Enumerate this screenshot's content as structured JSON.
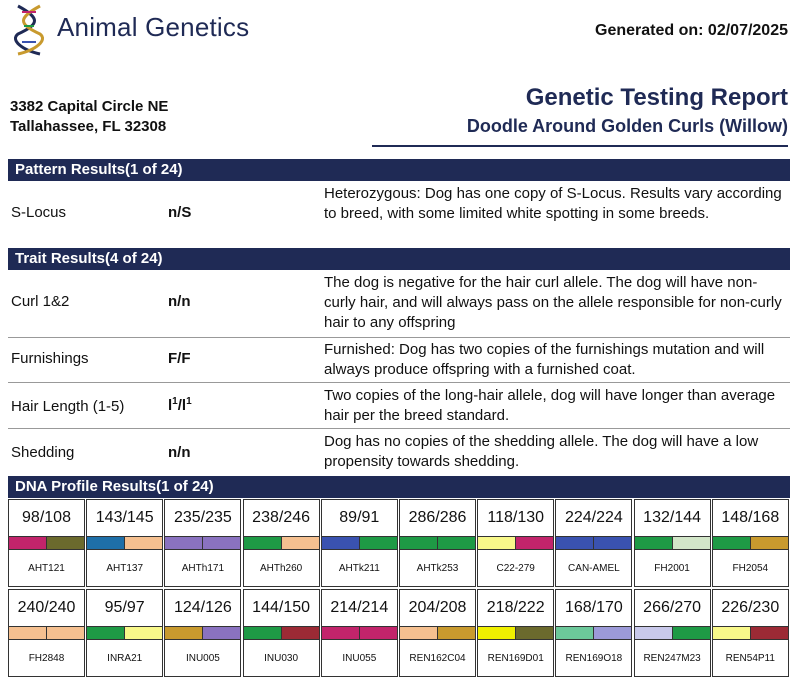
{
  "header": {
    "brand": "Animal Genetics",
    "generated_label": "Generated on:",
    "generated_date": "02/07/2025",
    "address_line1": "3382 Capital Circle NE",
    "address_line2": "Tallahassee, FL 32308",
    "report_title": "Genetic Testing Report",
    "dog_name": "Doodle Around Golden Curls (Willow)"
  },
  "pattern": {
    "title": "Pattern Results(1 of 24)",
    "rows": [
      {
        "name": "S-Locus",
        "genotype": "n/S",
        "description": "Heterozygous: Dog has one copy of S-Locus. Results vary according to breed, with some limited white spotting in some breeds."
      }
    ]
  },
  "trait": {
    "title": "Trait Results(4 of 24)",
    "rows": [
      {
        "name": "Curl 1&2",
        "genotype": "n/n",
        "description": "The dog is negative for the hair curl allele. The dog will have non-curly hair, and will always pass on the allele responsible for non-curly hair to any offspring"
      },
      {
        "name": "Furnishings",
        "genotype": "F/F",
        "description": "Furnished: Dog has two copies of the furnishings mutation and will always produce offspring with a furnished coat."
      },
      {
        "name": "Hair Length (1-5)",
        "genotype_base1": "l",
        "genotype_sup1": "1",
        "genotype_sep": "/",
        "genotype_base2": "l",
        "genotype_sup2": "1",
        "description": "Two copies of the long-hair allele, dog will have longer than average hair per the breed standard."
      },
      {
        "name": "Shedding",
        "genotype": "n/n",
        "description": "Dog has no copies of the shedding allele. The dog will have a low propensity towards shedding."
      }
    ]
  },
  "dna": {
    "title": "DNA Profile Results(1 of 24)",
    "markers": [
      {
        "value": "98/108",
        "marker": "AHT121",
        "c1": "#c2246b",
        "c2": "#6b6a2d"
      },
      {
        "value": "143/145",
        "marker": "AHT137",
        "c1": "#1e6fa8",
        "c2": "#f5c090"
      },
      {
        "value": "235/235",
        "marker": "AHTh171",
        "c1": "#8a72c0",
        "c2": "#8a72c0"
      },
      {
        "value": "238/246",
        "marker": "AHTh260",
        "c1": "#1e9a45",
        "c2": "#f5c090"
      },
      {
        "value": "89/91",
        "marker": "AHTk211",
        "c1": "#3a52b0",
        "c2": "#1e9a45"
      },
      {
        "value": "286/286",
        "marker": "AHTk253",
        "c1": "#1e9a45",
        "c2": "#1e9a45"
      },
      {
        "value": "118/130",
        "marker": "C22-279",
        "c1": "#f8f88a",
        "c2": "#c2246b"
      },
      {
        "value": "224/224",
        "marker": "CAN-AMEL",
        "c1": "#3a52b0",
        "c2": "#3a52b0"
      },
      {
        "value": "132/144",
        "marker": "FH2001",
        "c1": "#1e9a45",
        "c2": "#d2e6c8"
      },
      {
        "value": "148/168",
        "marker": "FH2054",
        "c1": "#1e9a45",
        "c2": "#c89a2e"
      },
      {
        "value": "240/240",
        "marker": "FH2848",
        "c1": "#f5c090",
        "c2": "#f5c090"
      },
      {
        "value": "95/97",
        "marker": "INRA21",
        "c1": "#1e9a45",
        "c2": "#f8f88a"
      },
      {
        "value": "124/126",
        "marker": "INU005",
        "c1": "#c89a2e",
        "c2": "#8a72c0"
      },
      {
        "value": "144/150",
        "marker": "INU030",
        "c1": "#1e9a45",
        "c2": "#9c2a35"
      },
      {
        "value": "214/214",
        "marker": "INU055",
        "c1": "#c2246b",
        "c2": "#c2246b"
      },
      {
        "value": "204/208",
        "marker": "REN162C04",
        "c1": "#f5c090",
        "c2": "#c89a2e"
      },
      {
        "value": "218/222",
        "marker": "REN169D01",
        "c1": "#f0f000",
        "c2": "#6b6a2d"
      },
      {
        "value": "168/170",
        "marker": "REN169O18",
        "c1": "#6cc89a",
        "c2": "#9c9ad8"
      },
      {
        "value": "266/270",
        "marker": "REN247M23",
        "c1": "#c8c8ea",
        "c2": "#1e9a45"
      },
      {
        "value": "226/230",
        "marker": "REN54P11",
        "c1": "#f8f88a",
        "c2": "#9c2a35"
      }
    ]
  }
}
